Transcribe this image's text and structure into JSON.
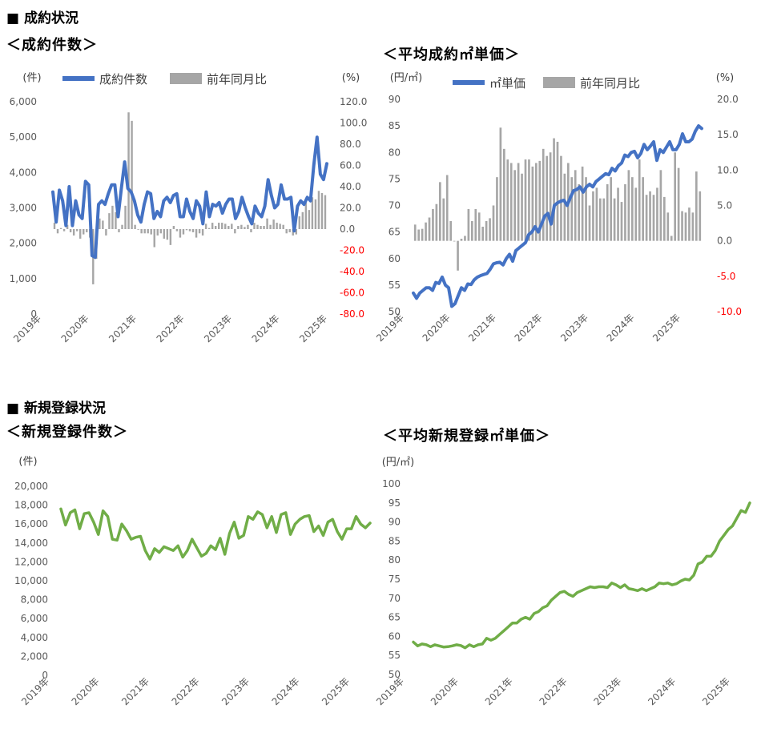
{
  "headings": {
    "section1": "■ 成約状況",
    "section2": "■ 新規登録状況",
    "chart1_title": "＜成約件数＞",
    "chart2_title": "＜平均成約㎡単価＞",
    "chart3_title": "＜新規登録件数＞",
    "chart4_title": "＜平均新規登録㎡単価＞"
  },
  "colors": {
    "blue": "#4472c4",
    "gray": "#a6a6a6",
    "green": "#70ad47",
    "negative": "#ff0000"
  },
  "chart_data": [
    {
      "type": "bar+line",
      "title": "＜成約件数＞",
      "left_unit": "(件)",
      "right_unit": "(%)",
      "legend": [
        "成約件数",
        "前年同月比"
      ],
      "x_labels": [
        "2019年",
        "2020年",
        "2021年",
        "2022年",
        "2023年",
        "2024年",
        "2025年"
      ],
      "left_ylim": [
        0,
        6000
      ],
      "left_ticks": [
        "6,000",
        "5,000",
        "4,000",
        "3,000",
        "2,000",
        "1,000",
        "0"
      ],
      "right_ylim": [
        -80,
        120
      ],
      "right_ticks": [
        "120.0",
        "100.0",
        "80.0",
        "60.0",
        "40.0",
        "20.0",
        "0.0",
        "-20.0",
        "-40.0",
        "-60.0",
        "-80.0"
      ],
      "series": [
        {
          "name": "成約件数",
          "kind": "line",
          "axis": "left",
          "values": [
            3450,
            2600,
            3500,
            3200,
            2500,
            3600,
            2500,
            3200,
            2800,
            2700,
            3750,
            3650,
            1650,
            1600,
            3100,
            3200,
            3100,
            3400,
            3650,
            3650,
            2750,
            3550,
            4300,
            3550,
            3450,
            3200,
            2800,
            2600,
            3100,
            3450,
            3400,
            2700,
            2900,
            2750,
            3200,
            3300,
            3150,
            3350,
            3400,
            2750,
            2750,
            3250,
            2900,
            2700,
            3200,
            3050,
            2550,
            3450,
            2750,
            3100,
            3050,
            3150,
            2850,
            3100,
            3250,
            3250,
            2700,
            2900,
            3300,
            3000,
            2750,
            2550,
            3050,
            2850,
            2750,
            3050,
            3800,
            3350,
            3000,
            3100,
            3650,
            3250,
            3250,
            3300,
            2350,
            3050,
            3200,
            3100,
            3300,
            3200,
            4200,
            5000,
            3950,
            3800,
            4250
          ]
        },
        {
          "name": "前年同月比",
          "kind": "bar",
          "axis": "right",
          "values": [
            6,
            -4,
            1,
            -2,
            4,
            -3,
            -6,
            -2,
            -9,
            -5,
            -3,
            -8,
            -52,
            -28,
            10,
            8,
            -6,
            15,
            22,
            16,
            -3,
            4,
            22,
            110,
            102,
            4,
            0,
            -4,
            -4,
            -4,
            -5,
            -17,
            -6,
            -4,
            -9,
            -10,
            -15,
            3,
            -2,
            -8,
            -5,
            -1,
            -2,
            -3,
            -8,
            -4,
            -6,
            5,
            1,
            6,
            3,
            6,
            6,
            5,
            3,
            5,
            -4,
            3,
            4,
            2,
            4,
            -3,
            6,
            4,
            3,
            3,
            10,
            4,
            9,
            6,
            5,
            4,
            -4,
            -3,
            -6,
            -5,
            12,
            16,
            25,
            18,
            30,
            28,
            36,
            34,
            32
          ]
        }
      ]
    },
    {
      "type": "bar+line",
      "title": "＜平均成約㎡単価＞",
      "left_unit": "(円/㎡)",
      "right_unit": "(%)",
      "legend": [
        "㎡単価",
        "前年同月比"
      ],
      "x_labels": [
        "2019年",
        "2020年",
        "2021年",
        "2022年",
        "2023年",
        "2024年",
        "2025年"
      ],
      "left_ylim": [
        50,
        90
      ],
      "left_ticks": [
        "90",
        "85",
        "80",
        "75",
        "70",
        "65",
        "60",
        "55",
        "50"
      ],
      "right_ylim": [
        -10,
        20
      ],
      "right_ticks": [
        "20.0",
        "15.0",
        "10.0",
        "5.0",
        "0.0",
        "-5.0",
        "-10.0"
      ],
      "series": [
        {
          "name": "㎡単価",
          "kind": "line",
          "axis": "left",
          "values": [
            53.5,
            52.5,
            53.5,
            54,
            54.5,
            54.5,
            54,
            55.5,
            55.3,
            56.5,
            55,
            54.5,
            51,
            51.5,
            53,
            54.5,
            54,
            55.2,
            55.1,
            56,
            56.5,
            56.8,
            57,
            57.2,
            58,
            59,
            59.2,
            59.3,
            58.8,
            60,
            60.8,
            59.5,
            61.5,
            62,
            62.5,
            63,
            64.5,
            65,
            66,
            65,
            66.5,
            68,
            68.5,
            66.5,
            70,
            70.5,
            70.8,
            71,
            70,
            71.5,
            72.8,
            73,
            73.5,
            72.5,
            73.5,
            74,
            73.5,
            74.5,
            75,
            75.5,
            76,
            75.8,
            77,
            76.5,
            77.5,
            78,
            79.5,
            79.2,
            80,
            80.2,
            79,
            79.8,
            81.5,
            80.5,
            81.2,
            82,
            78.5,
            80.5,
            80,
            81,
            82,
            80.5,
            80.5,
            81.5,
            83.5,
            82,
            82,
            82.5,
            84,
            85,
            84.5
          ]
        },
        {
          "name": "前年同月比",
          "kind": "bar",
          "axis": "right",
          "values": [
            2.3,
            1.6,
            1.7,
            2.6,
            3.3,
            4.5,
            5.2,
            8.3,
            6,
            9.3,
            2.8,
            0,
            -4.2,
            0.3,
            0.7,
            4.5,
            2.8,
            4.5,
            4,
            2,
            2.8,
            3.2,
            5,
            9,
            16,
            13,
            11.5,
            11,
            10,
            11,
            9.5,
            11.5,
            11.5,
            10.5,
            11,
            11.3,
            13,
            12,
            12.5,
            14.5,
            14,
            12,
            9.5,
            11,
            9,
            10,
            8,
            10.5,
            9,
            5,
            7,
            7.5,
            6,
            6,
            8,
            9,
            6,
            7.5,
            5.5,
            8,
            10,
            9,
            7.5,
            11.5,
            9,
            6.5,
            7,
            6.5,
            7.5,
            10,
            6.2,
            4,
            0.7,
            12.5,
            10.3,
            4.2,
            4,
            4.7,
            4,
            9.8,
            7
          ]
        }
      ]
    },
    {
      "type": "line",
      "title": "＜新規登録件数＞",
      "left_unit": "(件)",
      "x_labels": [
        "2019年",
        "2020年",
        "2021年",
        "2022年",
        "2023年",
        "2024年",
        "2025年"
      ],
      "left_ylim": [
        0,
        20000
      ],
      "left_ticks": [
        "20,000",
        "18,000",
        "16,000",
        "14,000",
        "12,000",
        "10,000",
        "8,000",
        "6,000",
        "4,000",
        "2,000",
        "0"
      ],
      "series": [
        {
          "name": "新規登録件数",
          "kind": "line",
          "values": [
            17600,
            15900,
            17200,
            17500,
            15500,
            17100,
            17200,
            16200,
            14900,
            17400,
            16800,
            14400,
            14300,
            16000,
            15300,
            14400,
            14600,
            14700,
            13200,
            12300,
            13400,
            13000,
            13600,
            13400,
            13200,
            13700,
            12500,
            13200,
            14400,
            13500,
            12600,
            12900,
            13700,
            13300,
            14500,
            12800,
            15000,
            16200,
            14500,
            14800,
            16800,
            16500,
            17300,
            17000,
            15600,
            16800,
            15100,
            17000,
            17200,
            14900,
            16000,
            16500,
            16800,
            16900,
            15200,
            15800,
            14800,
            16200,
            16500,
            15200,
            14400,
            15500,
            15500,
            16800,
            16000,
            15600,
            16100
          ]
        }
      ]
    },
    {
      "type": "line",
      "title": "＜平均新規登録㎡単価＞",
      "left_unit": "(円/㎡)",
      "x_labels": [
        "2019年",
        "2020年",
        "2021年",
        "2022年",
        "2023年",
        "2024年",
        "2025年"
      ],
      "left_ylim": [
        50,
        100
      ],
      "left_ticks": [
        "100",
        "95",
        "90",
        "85",
        "80",
        "75",
        "70",
        "65",
        "60",
        "55",
        "50"
      ],
      "series": [
        {
          "name": "平均新規登録㎡単価",
          "kind": "line",
          "values": [
            58.5,
            57.5,
            58,
            57.8,
            57.3,
            57.8,
            57.5,
            57.2,
            57.3,
            57.5,
            57.8,
            57.6,
            57,
            57.8,
            57.3,
            57.8,
            58,
            59.5,
            59,
            59.5,
            60.5,
            61.5,
            62.5,
            63.5,
            63.5,
            64.5,
            65,
            64.5,
            66,
            66.5,
            67.5,
            68,
            69.5,
            70.5,
            71.5,
            71.8,
            71,
            70.5,
            71.5,
            72,
            72.5,
            73,
            72.8,
            73,
            73,
            72.8,
            74,
            73.5,
            72.8,
            73.5,
            72.5,
            72.3,
            72,
            72.5,
            72,
            72.5,
            73,
            74,
            73.8,
            74,
            73.5,
            73.8,
            74.5,
            75,
            74.8,
            76,
            79,
            79.5,
            81,
            81,
            82.5,
            85,
            86.5,
            88,
            89,
            91,
            93,
            92.5,
            95
          ]
        }
      ]
    }
  ]
}
